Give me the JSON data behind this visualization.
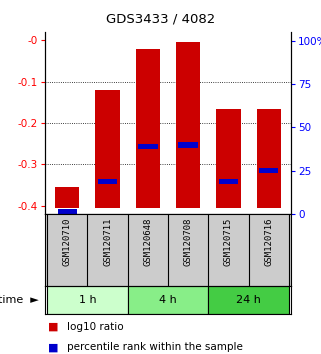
{
  "title": "GDS3433 / 4082",
  "samples": [
    "GSM120710",
    "GSM120711",
    "GSM120648",
    "GSM120708",
    "GSM120715",
    "GSM120716"
  ],
  "log10_ratios": [
    -0.355,
    -0.12,
    -0.022,
    -0.005,
    -0.165,
    -0.165
  ],
  "log10_bottom": [
    -0.405,
    -0.405,
    -0.405,
    -0.405,
    -0.405,
    -0.405
  ],
  "percentile_ranks": [
    1,
    18,
    37,
    38,
    18,
    24
  ],
  "time_groups": [
    {
      "label": "1 h",
      "color": "#ccffcc",
      "start": 0,
      "end": 1
    },
    {
      "label": "4 h",
      "color": "#88ee88",
      "start": 2,
      "end": 3
    },
    {
      "label": "24 h",
      "color": "#44cc44",
      "start": 4,
      "end": 5
    }
  ],
  "ylim_left": [
    -0.42,
    0.02
  ],
  "ylim_right": [
    0,
    105
  ],
  "left_ticks": [
    0,
    -0.1,
    -0.2,
    -0.3,
    -0.4
  ],
  "left_tick_labels": [
    "-0",
    "-0.1",
    "-0.2",
    "-0.3",
    "-0.4"
  ],
  "right_ticks": [
    0,
    25,
    50,
    75,
    100
  ],
  "right_tick_labels": [
    "0",
    "25",
    "50",
    "75",
    "100%"
  ],
  "bar_color": "#cc0000",
  "percentile_color": "#0000cc",
  "background_label": "#cccccc",
  "time_label_text": "time",
  "legend": [
    {
      "color": "#cc0000",
      "label": "log10 ratio"
    },
    {
      "color": "#0000cc",
      "label": "percentile rank within the sample"
    }
  ]
}
